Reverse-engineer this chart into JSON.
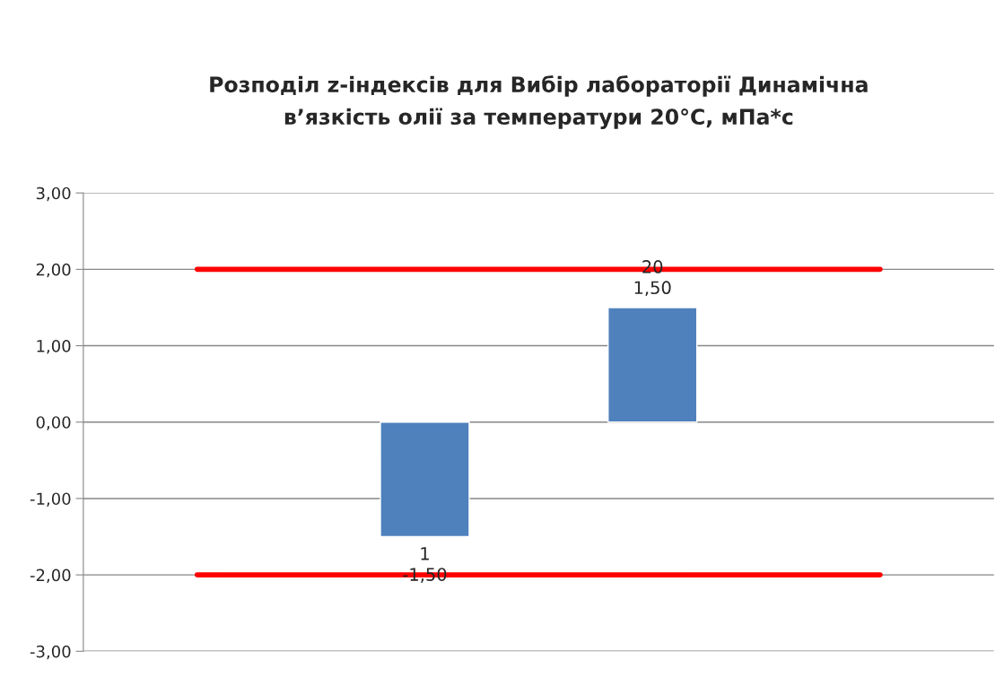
{
  "chart_data": {
    "type": "bar",
    "title": "Розподіл z-індексів для Вибір лабораторії Динамічна\nв’язкість олії за температури 20°С, мПа*с",
    "categories": [
      null,
      null,
      null,
      null
    ],
    "series": [
      {
        "color": "#4f81bd",
        "values": [
          null,
          -1.5,
          1.5,
          null
        ],
        "value_labels": [
          null,
          "1\n-1,50",
          "20\n1,50",
          null
        ]
      },
      {
        "type": "line",
        "color": "#ff0000",
        "values": [
          2,
          2,
          2,
          2
        ]
      },
      {
        "type": "line",
        "color": "#ff0000",
        "values": [
          -2,
          -2,
          -2,
          -2
        ]
      }
    ],
    "ylim": [
      -3,
      3
    ],
    "yticks": [
      {
        "value": -3,
        "label": "-3,00"
      },
      {
        "value": -2,
        "label": "-2,00"
      },
      {
        "value": -1,
        "label": "-1,00"
      },
      {
        "value": 0,
        "label": "0,00"
      },
      {
        "value": 1,
        "label": "1,00"
      },
      {
        "value": 2,
        "label": "2,00"
      },
      {
        "value": 3,
        "label": "3,00"
      }
    ],
    "grid": "y",
    "legend": false,
    "marker": "none",
    "line_style": "solid"
  }
}
